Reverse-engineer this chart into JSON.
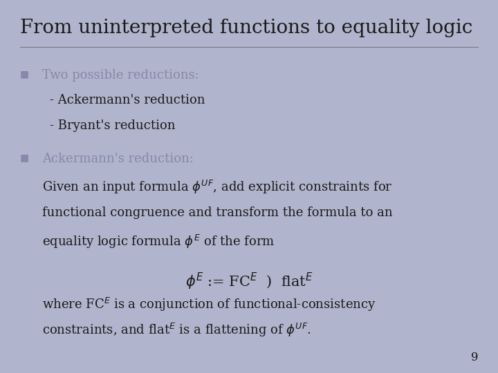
{
  "title": "From uninterpreted functions to equality logic",
  "background_color": "#b0b4cc",
  "title_color": "#1a1a1a",
  "title_fontsize": 20,
  "bullet_color": "#8888aa",
  "text_color": "#1a1a1a",
  "page_number": "9",
  "bullet1_header": "Two possible reductions:",
  "bullet1_lines": [
    "- Ackermann's reduction",
    "- Bryant's reduction"
  ],
  "bullet2_header": "Ackermann's reduction:"
}
